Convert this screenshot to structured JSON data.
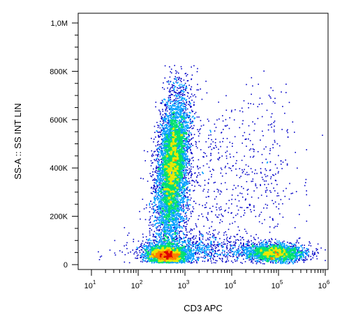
{
  "chart_data": {
    "type": "scatter",
    "subtype": "flow-cytometry-density-dot-plot",
    "title": "",
    "xlabel": "CD3 APC",
    "ylabel": "SS-A :: SS INT LIN",
    "x_scale": "log",
    "y_scale": "linear",
    "xlim": [
      10,
      1000000
    ],
    "ylim": [
      0,
      1050000
    ],
    "x_ticks": [
      {
        "base": "10",
        "exp": "1"
      },
      {
        "base": "10",
        "exp": "2"
      },
      {
        "base": "10",
        "exp": "3"
      },
      {
        "base": "10",
        "exp": "4"
      },
      {
        "base": "10",
        "exp": "5"
      },
      {
        "base": "10",
        "exp": "6"
      }
    ],
    "x_tick_values": [
      10,
      100,
      1000,
      10000,
      100000,
      1000000
    ],
    "y_ticks": [
      {
        "value": 0,
        "label": "0"
      },
      {
        "value": 200000,
        "label": "200K"
      },
      {
        "value": 400000,
        "label": "400K"
      },
      {
        "value": 600000,
        "label": "600K"
      },
      {
        "value": 800000,
        "label": "800K"
      },
      {
        "value": 1000000,
        "label": "1,0M"
      }
    ],
    "grid": false,
    "legend": "none",
    "colormap": [
      "#0000c8",
      "#00a0ff",
      "#00e070",
      "#e8e800",
      "#ff8000",
      "#e00000"
    ],
    "populations": [
      {
        "x_center": 600,
        "y_center": 450000,
        "description": "CD3-negative cells, high side scatter"
      },
      {
        "x_center": 400,
        "y_center": 50000,
        "description": "CD3-negative cells, low side scatter"
      },
      {
        "x_center": 80000,
        "y_center": 50000,
        "description": "CD3-positive lymphocytes, low side scatter"
      }
    ]
  }
}
